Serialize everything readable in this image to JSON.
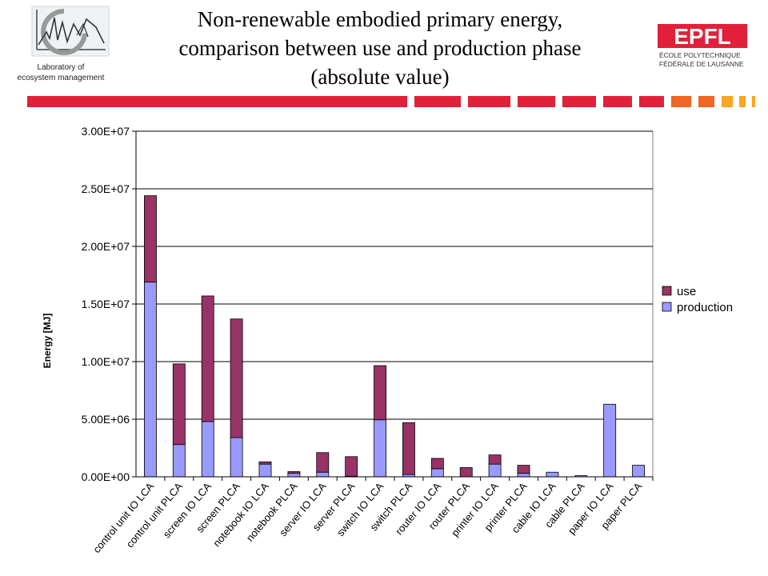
{
  "header": {
    "lab_caption_line1": "Laboratory of",
    "lab_caption_line2": "ecosystem management",
    "title_line1": "Non-renewable embodied primary energy,",
    "title_line2": "comparison between use and production phase",
    "title_line3": "(absolute value)",
    "logo_text": "EPFL",
    "logo_line1": "ÉCOLE POLYTECHNIQUE",
    "logo_line2": "FÉDÉRALE DE LAUSANNE"
  },
  "colors": {
    "use": "#993366",
    "production": "#9999ff",
    "brand_red": "#e2203a",
    "accent_orange": "#f26522",
    "accent_yellow": "#f5a623"
  },
  "chart_data": {
    "type": "bar",
    "stacked": true,
    "title": "Non-renewable embodied primary energy, comparison between use and production phase (absolute value)",
    "xlabel": "",
    "ylabel": "Energy [MJ]",
    "ylim": [
      0,
      30000000
    ],
    "yticks": [
      "0.00E+00",
      "5.00E+06",
      "1.00E+07",
      "1.50E+07",
      "2.00E+07",
      "2.50E+07",
      "3.00E+07"
    ],
    "grid": true,
    "legend_position": "right",
    "categories": [
      "control unit IO LCA",
      "control unit PLCA",
      "screen IO LCA",
      "screen PLCA",
      "notebook IO LCA",
      "notebook PLCA",
      "server IO LCA",
      "server PLCA",
      "switch IO LCA",
      "switch PLCA",
      "router IO LCA",
      "router PLCA",
      "printer IO LCA",
      "printer PLCA",
      "cable IO LCA",
      "cable PLCA",
      "paper IO LCA",
      "paper PLCA"
    ],
    "series": [
      {
        "name": "production",
        "values": [
          16900000,
          2800000,
          4800000,
          3400000,
          1100000,
          300000,
          400000,
          50000,
          4950000,
          200000,
          700000,
          0,
          1100000,
          300000,
          400000,
          100000,
          6300000,
          1000000
        ]
      },
      {
        "name": "use",
        "values": [
          7500000,
          7000000,
          10900000,
          10300000,
          200000,
          150000,
          1700000,
          1700000,
          4700000,
          4500000,
          900000,
          800000,
          800000,
          700000,
          0,
          0,
          0,
          0
        ]
      }
    ],
    "legend": [
      "use",
      "production"
    ]
  }
}
